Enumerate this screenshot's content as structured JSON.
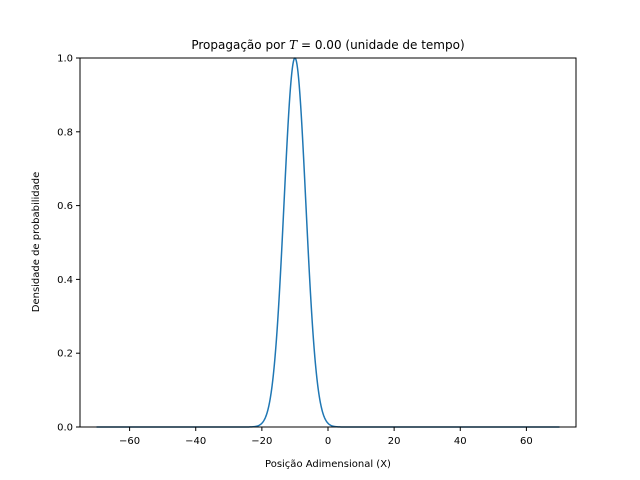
{
  "chart_data": {
    "type": "line",
    "title": {
      "prefix": "Propagação por ",
      "math_var": "T",
      "suffix": " = 0.00 (unidade de tempo)"
    },
    "xlabel": "Posição Adimensional (X)",
    "ylabel": "Densidade de probabilidade",
    "xlim": [
      -75,
      75
    ],
    "ylim": [
      0,
      1.0
    ],
    "xticks": [
      -60,
      -40,
      -20,
      0,
      20,
      40,
      60
    ],
    "xtick_labels": [
      "−60",
      "−40",
      "−20",
      "0",
      "20",
      "40",
      "60"
    ],
    "yticks": [
      0.0,
      0.2,
      0.4,
      0.6,
      0.8,
      1.0
    ],
    "ytick_labels": [
      "0.0",
      "0.2",
      "0.4",
      "0.6",
      "0.8",
      "1.0"
    ],
    "grid": false,
    "series": [
      {
        "color": "#1f77b4",
        "x_range": [
          -70,
          70
        ],
        "peak_center": -10,
        "peak_value": 1.0,
        "peak_sigma": 3.3
      }
    ]
  }
}
